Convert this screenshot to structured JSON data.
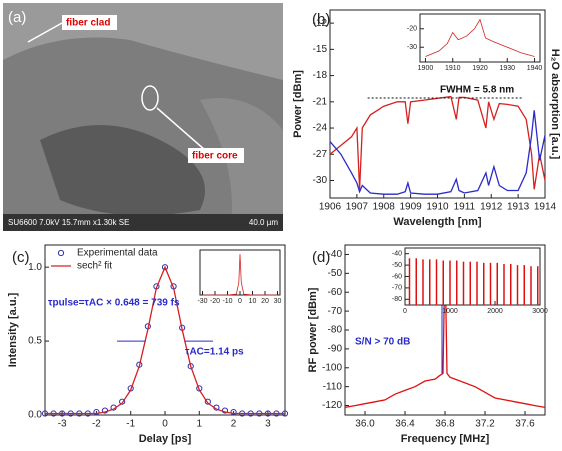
{
  "image_panel": {
    "panel_label": "(a)",
    "annotations": [
      "fiber clad",
      "fiber core"
    ],
    "caption": "SU6600 7.0kV 15.7mm x1.30k SE",
    "scale": "40.0 µm"
  },
  "chart_data": [
    {
      "type": "line",
      "panel_label": "(b)",
      "xlabel": "Wavelength [nm]",
      "ylabel": "Power [dBm]",
      "y2label": "H₂O absorption [a.u.]",
      "xlim": [
        1906,
        1914
      ],
      "xticks": [
        1906,
        1907,
        1908,
        1909,
        1910,
        1911,
        1912,
        1913,
        1914
      ],
      "ylim": [
        -32,
        -10.5
      ],
      "yticks": [
        -30,
        -27,
        -24,
        -21,
        -18,
        -15,
        -12
      ],
      "y2lim": [
        0,
        1.5
      ],
      "annotations": [
        "FWHM = 5.8 nm"
      ],
      "x": [
        1906,
        1906.4,
        1906.8,
        1907.0,
        1907.1,
        1907.2,
        1907.5,
        1908,
        1908.5,
        1908.8,
        1908.9,
        1909.0,
        1909.5,
        1910,
        1910.5,
        1910.7,
        1910.8,
        1911,
        1911.5,
        1911.8,
        1911.9,
        1912.1,
        1912.3,
        1912.6,
        1913,
        1913.3,
        1913.5,
        1913.6,
        1913.8,
        1914
      ],
      "series": [
        {
          "style": "line",
          "color": "#d62020",
          "values": [
            -27,
            -26,
            -25,
            -24,
            -31,
            -24,
            -22.5,
            -21.5,
            -21,
            -21,
            -23.5,
            -21,
            -20.8,
            -20.6,
            -20.4,
            -23,
            -20.5,
            -20.5,
            -20.8,
            -24,
            -21,
            -23,
            -21.2,
            -21.3,
            -21.5,
            -23,
            -27,
            -31,
            -27,
            -30
          ]
        },
        {
          "style": "line",
          "color": "#2a2acc",
          "axis": "y2",
          "values": [
            0.45,
            0.35,
            0.2,
            0.12,
            0.05,
            0.1,
            0.04,
            0.03,
            0.03,
            0.05,
            0.12,
            0.04,
            0.03,
            0.03,
            0.05,
            0.15,
            0.06,
            0.04,
            0.06,
            0.2,
            0.1,
            0.25,
            0.1,
            0.06,
            0.06,
            0.2,
            0.5,
            0.7,
            0.3,
            0.5
          ]
        }
      ],
      "inset": {
        "type": "line",
        "xlim": [
          1898,
          1942
        ],
        "xticks": [
          1900,
          1910,
          1920,
          1930,
          1940
        ],
        "ylim": [
          -38,
          -12
        ],
        "yticks": [
          -30,
          -20
        ],
        "x": [
          1900,
          1905,
          1908,
          1910,
          1912,
          1915,
          1918,
          1920,
          1922,
          1925,
          1930,
          1935,
          1940
        ],
        "series": [
          {
            "style": "line",
            "color": "#d62020",
            "values": [
              -35,
              -32,
              -28,
              -22,
              -26,
              -24,
              -20,
              -15,
              -25,
              -27,
              -30,
              -33,
              -35
            ]
          }
        ]
      }
    },
    {
      "type": "line",
      "panel_label": "(c)",
      "xlabel": "Delay [ps]",
      "ylabel": "Intensity [a.u.]",
      "legend": "upper left",
      "xlim": [
        -3.5,
        3.5
      ],
      "xticks": [
        -3,
        -2,
        -1,
        0,
        1,
        2,
        3
      ],
      "ylim": [
        0,
        1.15
      ],
      "yticks": [
        {
          "value": 0,
          "label": "0.0"
        },
        {
          "value": 0.5,
          "label": "0.5"
        },
        {
          "value": 1,
          "label": "1.0"
        }
      ],
      "annotations": [
        "τpulse=τAC × 0.648 = 739 fs",
        "τAC=1.14 ps"
      ],
      "x": [
        -3.5,
        -3.25,
        -3,
        -2.75,
        -2.5,
        -2.25,
        -2,
        -1.75,
        -1.5,
        -1.25,
        -1,
        -0.75,
        -0.5,
        -0.25,
        0,
        0.25,
        0.5,
        0.75,
        1,
        1.25,
        1.5,
        1.75,
        2,
        2.25,
        2.5,
        2.75,
        3,
        3.25,
        3.5
      ],
      "series": [
        {
          "name": "Experimental data",
          "style": "markers",
          "color": "#3030b0",
          "values": [
            0.01,
            0.01,
            0.01,
            0.01,
            0.01,
            0.01,
            0.02,
            0.03,
            0.05,
            0.09,
            0.18,
            0.34,
            0.6,
            0.87,
            1.0,
            0.87,
            0.59,
            0.33,
            0.18,
            0.09,
            0.05,
            0.03,
            0.02,
            0.01,
            0.01,
            0.01,
            0.01,
            0.01,
            0.01
          ]
        },
        {
          "name": "sech² fit",
          "style": "line",
          "color": "#d62020",
          "values": [
            0.01,
            0.01,
            0.01,
            0.01,
            0.01,
            0.01,
            0.01,
            0.02,
            0.04,
            0.08,
            0.17,
            0.33,
            0.58,
            0.86,
            1.0,
            0.86,
            0.58,
            0.33,
            0.17,
            0.08,
            0.04,
            0.02,
            0.01,
            0.01,
            0.01,
            0.01,
            0.01,
            0.01,
            0.01
          ]
        }
      ],
      "inset": {
        "type": "line",
        "xlim": [
          -32,
          32
        ],
        "xticks": [
          -30,
          -20,
          -10,
          0,
          10,
          20,
          30
        ],
        "ylim": [
          0,
          1.1
        ],
        "x": [
          -30,
          -20,
          -10,
          -3,
          -1,
          0,
          1,
          3,
          10,
          20,
          30
        ],
        "series": [
          {
            "style": "line",
            "color": "#d62020",
            "values": [
              0,
              0,
              0,
              0.02,
              0.3,
              1,
              0.3,
              0.02,
              0,
              0,
              0
            ]
          }
        ]
      }
    },
    {
      "type": "line",
      "panel_label": "(d)",
      "xlabel": "Frequency [MHz]",
      "ylabel": "RF power [dBm]",
      "xlim": [
        35.8,
        37.8
      ],
      "xticks": [
        {
          "value": 36,
          "label": "36.0"
        },
        36.4,
        36.8,
        37.2,
        37.6
      ],
      "ylim": [
        -125,
        -35
      ],
      "yticks": [
        -120,
        -110,
        -100,
        -90,
        -80,
        -70,
        -60,
        -50,
        -40
      ],
      "annotations": [
        "S/N > 70 dB"
      ],
      "x": [
        35.8,
        35.9,
        36.0,
        36.1,
        36.2,
        36.3,
        36.4,
        36.5,
        36.6,
        36.7,
        36.75,
        36.78,
        36.8,
        36.82,
        36.85,
        36.9,
        37.0,
        37.1,
        37.2,
        37.3,
        37.4,
        37.5,
        37.6,
        37.7,
        37.8
      ],
      "series": [
        {
          "style": "line",
          "color": "#e01010",
          "values": [
            -121,
            -120,
            -119,
            -118,
            -117,
            -114,
            -112,
            -110,
            -107,
            -106,
            -104,
            -103,
            -40,
            -103,
            -105,
            -106,
            -108,
            -110,
            -113,
            -116,
            -117,
            -118,
            -119,
            -120,
            -121
          ]
        }
      ],
      "inset": {
        "type": "line",
        "xlim": [
          0,
          3000
        ],
        "xticks": [
          0,
          1000,
          2000,
          3000
        ],
        "ylim": [
          -85,
          -35
        ],
        "yticks": [
          -80,
          -70,
          -60,
          -50,
          -40
        ],
        "x": [
          100,
          250,
          400,
          550,
          700,
          850,
          1000,
          1150,
          1300,
          1450,
          1600,
          1750,
          1900,
          2050,
          2200,
          2350,
          2500,
          2650,
          2800,
          2950
        ],
        "series": [
          {
            "style": "stem",
            "color": "#e01010",
            "values": [
              -44,
              -44,
              -45,
              -45,
              -45,
              -46,
              -46,
              -46,
              -47,
              -47,
              -47,
              -48,
              -48,
              -48,
              -49,
              -49,
              -50,
              -50,
              -51,
              -51
            ]
          }
        ]
      }
    }
  ]
}
